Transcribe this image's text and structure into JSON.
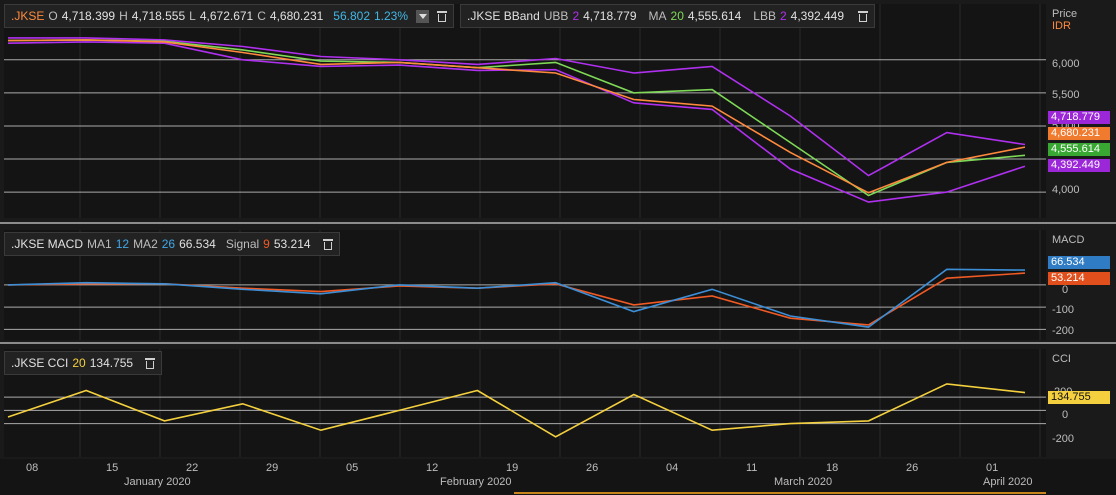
{
  "colors": {
    "price": "#ff8a3d",
    "upper": "#b030f0",
    "ma": "#7ed957",
    "macd": "#3c8ed6",
    "signal": "#f05a24",
    "cci": "#f4d03f",
    "grid": "#2a2a2a",
    "ref": "#aaaaaa"
  },
  "price_legend": {
    "ticker": ".JKSE",
    "o_label": "O",
    "o": "4,718.399",
    "h_label": "H",
    "h": "4,718.555",
    "l_label": "L",
    "l": "4,672.671",
    "c_label": "C",
    "c": "4,680.231",
    "chg": "56.802",
    "chg_pct": "1.23%",
    "dropdown_icon": "chevron-down-icon",
    "trash_icon": "trash-icon"
  },
  "bb_legend": {
    "name": ".JKSE BBand",
    "ubb_label": "UBB",
    "ubb_p": "2",
    "ubb": "4,718.779",
    "ma_label": "MA",
    "ma_p": "20",
    "ma": "4,555.614",
    "lbb_label": "LBB",
    "lbb_p": "2",
    "lbb": "4,392.449"
  },
  "macd_legend": {
    "name": ".JKSE MACD",
    "ma1_label": "MA1",
    "ma1": "12",
    "ma2_label": "MA2",
    "ma2": "26",
    "value": "66.534",
    "signal_label": "Signal",
    "signal_p": "9",
    "signal": "53.214"
  },
  "cci_legend": {
    "name": ".JKSE CCI",
    "period": "20",
    "value": "134.755"
  },
  "axis_titles": {
    "price": "Price",
    "currency": "IDR",
    "macd": "MACD",
    "cci": "CCI"
  },
  "price_ticks": [
    "6,000",
    "5,500",
    "5,000",
    "4,000"
  ],
  "macd_ticks": [
    "0",
    "-100",
    "-200"
  ],
  "cci_ticks": [
    "200",
    "0",
    "-200"
  ],
  "tags": {
    "ubb": "4,718.779",
    "close": "4,680.231",
    "ma": "4,555.614",
    "lbb": "4,392.449",
    "macd": "66.534",
    "signal": "53.214",
    "cci": "134.755"
  },
  "x_ticks": [
    "08",
    "15",
    "22",
    "29",
    "05",
    "12",
    "19",
    "26",
    "04",
    "11",
    "18",
    "26",
    "01"
  ],
  "months": [
    "January 2020",
    "February 2020",
    "March 2020",
    "April 2020"
  ],
  "chart_data": [
    {
      "type": "line",
      "title": ".JKSE",
      "ylabel": "Price IDR",
      "ylim": [
        3700,
        6450
      ],
      "x": [
        "2020-01-06",
        "2020-01-13",
        "2020-01-20",
        "2020-01-27",
        "2020-02-03",
        "2020-02-10",
        "2020-02-17",
        "2020-02-24",
        "2020-03-02",
        "2020-03-09",
        "2020-03-16",
        "2020-03-23",
        "2020-03-30",
        "2020-04-06"
      ],
      "series": [
        {
          "name": "UBB",
          "values": [
            6330,
            6330,
            6300,
            6200,
            6050,
            6000,
            5930,
            6020,
            5800,
            5900,
            5150,
            4250,
            4900,
            4720
          ]
        },
        {
          "name": "MA",
          "values": [
            6290,
            6300,
            6280,
            6150,
            5980,
            5960,
            5880,
            5960,
            5500,
            5550,
            4750,
            3950,
            4450,
            4556
          ]
        },
        {
          "name": "LBB",
          "values": [
            6250,
            6270,
            6250,
            6000,
            5900,
            5920,
            5840,
            5850,
            5350,
            5250,
            4350,
            3850,
            4000,
            4392
          ]
        },
        {
          "name": ".JKSE",
          "values": [
            6290,
            6300,
            6270,
            6110,
            5930,
            5960,
            5880,
            5800,
            5400,
            5300,
            4600,
            3990,
            4450,
            4680
          ]
        }
      ]
    },
    {
      "type": "line",
      "title": ".JKSE MACD",
      "ylim": [
        -230,
        130
      ],
      "x": [
        "2020-01-06",
        "2020-01-13",
        "2020-01-20",
        "2020-01-27",
        "2020-02-03",
        "2020-02-10",
        "2020-02-17",
        "2020-02-24",
        "2020-03-02",
        "2020-03-09",
        "2020-03-16",
        "2020-03-23",
        "2020-03-30",
        "2020-04-06"
      ],
      "series": [
        {
          "name": "MACD",
          "values": [
            0,
            10,
            5,
            -20,
            -40,
            0,
            -15,
            10,
            -120,
            -20,
            -140,
            -190,
            70,
            66.534
          ]
        },
        {
          "name": "Signal",
          "values": [
            0,
            5,
            5,
            -15,
            -30,
            -5,
            -15,
            5,
            -90,
            -50,
            -150,
            -180,
            30,
            53.214
          ]
        }
      ]
    },
    {
      "type": "line",
      "title": ".JKSE CCI",
      "ylim": [
        -330,
        260
      ],
      "x": [
        "2020-01-06",
        "2020-01-13",
        "2020-01-20",
        "2020-01-27",
        "2020-02-03",
        "2020-02-10",
        "2020-02-17",
        "2020-02-24",
        "2020-03-02",
        "2020-03-09",
        "2020-03-16",
        "2020-03-23",
        "2020-03-30",
        "2020-04-06"
      ],
      "series": [
        {
          "name": "CCI",
          "values": [
            -50,
            150,
            -80,
            50,
            -150,
            0,
            150,
            -200,
            120,
            -150,
            -100,
            -80,
            200,
            134.755
          ]
        }
      ]
    }
  ]
}
